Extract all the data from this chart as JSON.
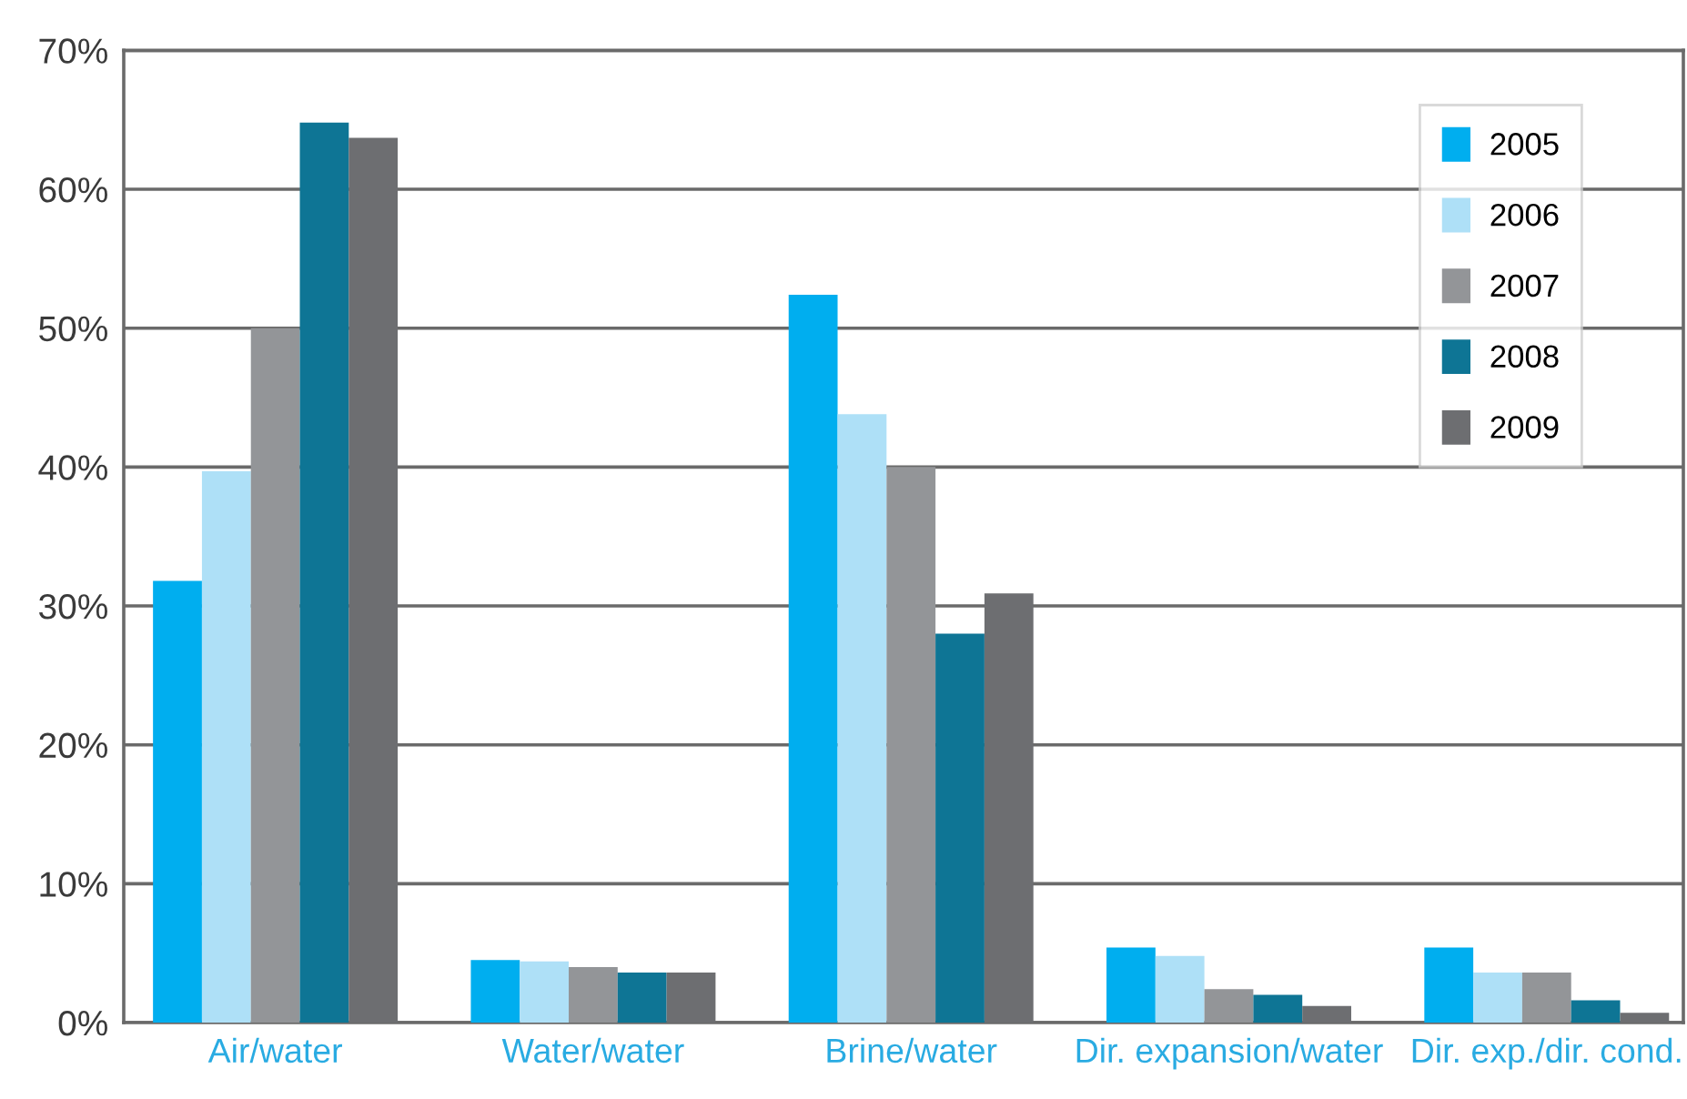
{
  "chart_data": {
    "type": "bar",
    "categories": [
      "Air/water",
      "Water/water",
      "Brine/water",
      "Dir. expansion/water",
      "Dir. exp./dir. cond."
    ],
    "series": [
      {
        "name": "2005",
        "color": "#00aeef",
        "values": [
          31.8,
          4.5,
          52.4,
          5.4,
          5.4
        ]
      },
      {
        "name": "2006",
        "color": "#aee0f7",
        "values": [
          39.7,
          4.4,
          43.8,
          4.8,
          3.6
        ]
      },
      {
        "name": "2007",
        "color": "#939598",
        "values": [
          50,
          4.0,
          40,
          2.4,
          3.6
        ]
      },
      {
        "name": "2008",
        "color": "#0e7595",
        "values": [
          64.8,
          3.6,
          28,
          2.0,
          1.6
        ]
      },
      {
        "name": "2009",
        "color": "#6d6e71",
        "values": [
          63.7,
          3.6,
          30.9,
          1.2,
          0.7
        ]
      }
    ],
    "ylim": [
      0,
      70
    ],
    "yticks": [
      {
        "value": 0,
        "label": "0%"
      },
      {
        "value": 10,
        "label": "10%"
      },
      {
        "value": 20,
        "label": "20%"
      },
      {
        "value": 30,
        "label": "30%"
      },
      {
        "value": 40,
        "label": "40%"
      },
      {
        "value": 50,
        "label": "50%"
      },
      {
        "value": 60,
        "label": "60%"
      },
      {
        "value": 70,
        "label": "70%"
      }
    ],
    "grid": "y",
    "legend": "top right"
  }
}
